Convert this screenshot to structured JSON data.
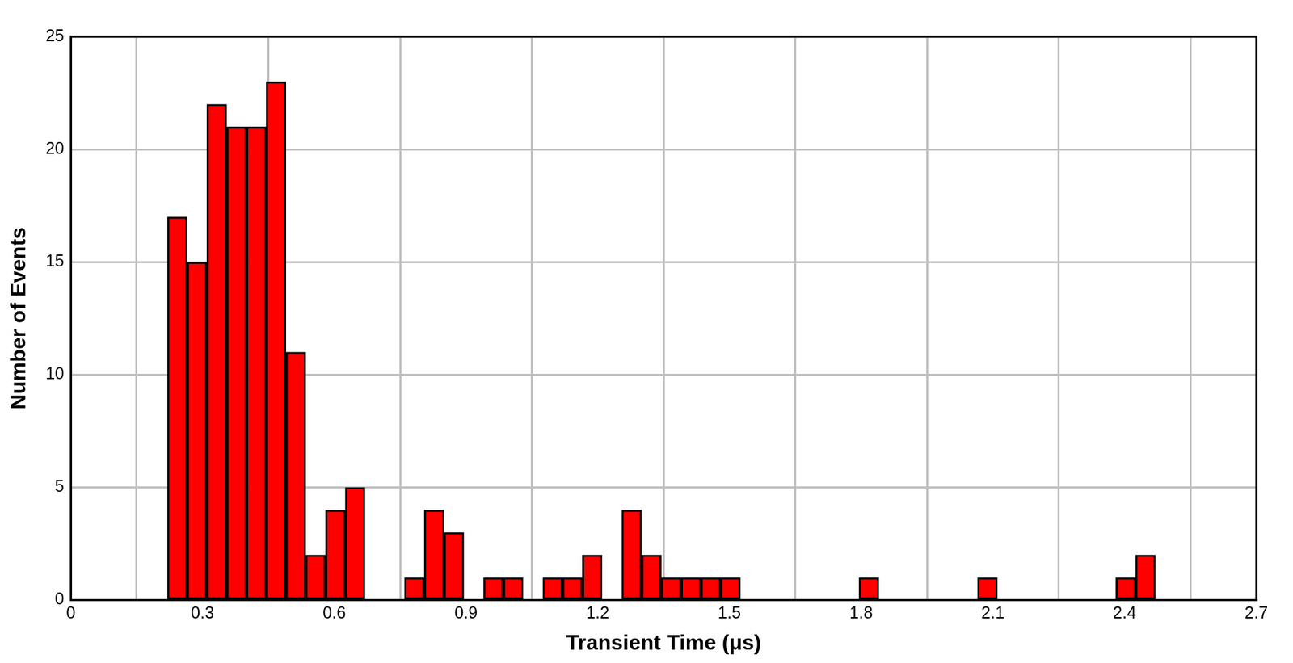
{
  "chart_data": {
    "type": "histogram",
    "x_label": "Transient Time (μs)",
    "y_label": "Number of Events",
    "bins": [
      0.22,
      0.265,
      0.31,
      0.355,
      0.4,
      0.445,
      0.49,
      0.535,
      0.58,
      0.625,
      0.67,
      0.715,
      0.76,
      0.805,
      0.85,
      0.895,
      0.94,
      0.985,
      1.03,
      1.075,
      1.12,
      1.165,
      1.21,
      1.255,
      1.3,
      1.345,
      1.39,
      1.435,
      1.48,
      1.525,
      1.57,
      1.615,
      1.66,
      1.705,
      1.75,
      1.795,
      1.84,
      1.885,
      1.93,
      1.975,
      2.02,
      2.065,
      2.11,
      2.155,
      2.2,
      2.245,
      2.29,
      2.335,
      2.38,
      2.425,
      2.47
    ],
    "values": [
      17,
      15,
      22,
      21,
      21,
      23,
      11,
      2,
      4,
      5,
      0,
      0,
      1,
      4,
      3,
      0,
      1,
      1,
      0,
      1,
      1,
      2,
      0,
      4,
      2,
      1,
      1,
      1,
      1,
      0,
      0,
      0,
      0,
      0,
      0,
      1,
      0,
      0,
      0,
      0,
      0,
      1,
      0,
      0,
      0,
      0,
      0,
      0,
      1,
      2
    ],
    "color": "#ff0000",
    "xlim": [
      0,
      2.7
    ],
    "xticks": [
      0,
      0.3,
      0.6,
      0.9,
      1.2,
      1.5,
      1.8,
      2.1,
      2.4,
      2.7
    ],
    "ylim": [
      0,
      25
    ],
    "yticks": [
      0,
      5,
      10,
      15,
      20,
      25
    ],
    "grid": true
  }
}
